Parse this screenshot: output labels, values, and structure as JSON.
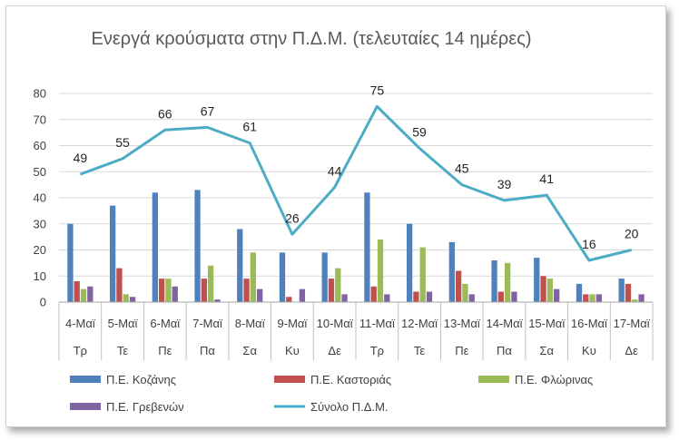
{
  "chart_data": {
    "type": "bar",
    "title": "Ενεργά κρούσματα στην Π.Δ.Μ. (τελευταίες 14 ημέρες)",
    "categories": [
      "4-Μαϊ",
      "5-Μαϊ",
      "6-Μαϊ",
      "7-Μαϊ",
      "8-Μαϊ",
      "9-Μαϊ",
      "10-Μαϊ",
      "11-Μαϊ",
      "12-Μαϊ",
      "13-Μαϊ",
      "14-Μαϊ",
      "15-Μαϊ",
      "16-Μαϊ",
      "17-Μαϊ"
    ],
    "days": [
      "Τρ",
      "Τε",
      "Πε",
      "Πα",
      "Σα",
      "Κυ",
      "Δε",
      "Τρ",
      "Τε",
      "Πε",
      "Πα",
      "Σα",
      "Κυ",
      "Δε"
    ],
    "ylim": [
      0,
      80
    ],
    "yticks": [
      0,
      10,
      20,
      30,
      40,
      50,
      60,
      70,
      80
    ],
    "grid": true,
    "legend_position": "bottom",
    "series": [
      {
        "name": "Π.Ε. Κοζάνης",
        "kind": "bar",
        "color": "#4F81BD",
        "values": [
          30,
          37,
          42,
          43,
          28,
          19,
          19,
          42,
          30,
          23,
          16,
          17,
          7,
          9
        ]
      },
      {
        "name": "Π.Ε. Καστοριάς",
        "kind": "bar",
        "color": "#C0504D",
        "values": [
          8,
          13,
          9,
          9,
          9,
          2,
          9,
          6,
          4,
          12,
          4,
          10,
          3,
          7
        ]
      },
      {
        "name": "Π.Ε. Φλώρινας",
        "kind": "bar",
        "color": "#9BBB59",
        "values": [
          5,
          3,
          9,
          14,
          19,
          0,
          13,
          24,
          21,
          7,
          15,
          9,
          3,
          1
        ]
      },
      {
        "name": "Π.Ε. Γρεβενών",
        "kind": "bar",
        "color": "#8064A2",
        "values": [
          6,
          2,
          6,
          1,
          5,
          5,
          3,
          3,
          4,
          3,
          4,
          5,
          3,
          3
        ]
      },
      {
        "name": "Σύνολο Π.Δ.Μ.",
        "kind": "line",
        "color": "#4BACC6",
        "values": [
          49,
          55,
          66,
          67,
          61,
          26,
          44,
          75,
          59,
          45,
          39,
          41,
          16,
          20
        ]
      }
    ]
  }
}
